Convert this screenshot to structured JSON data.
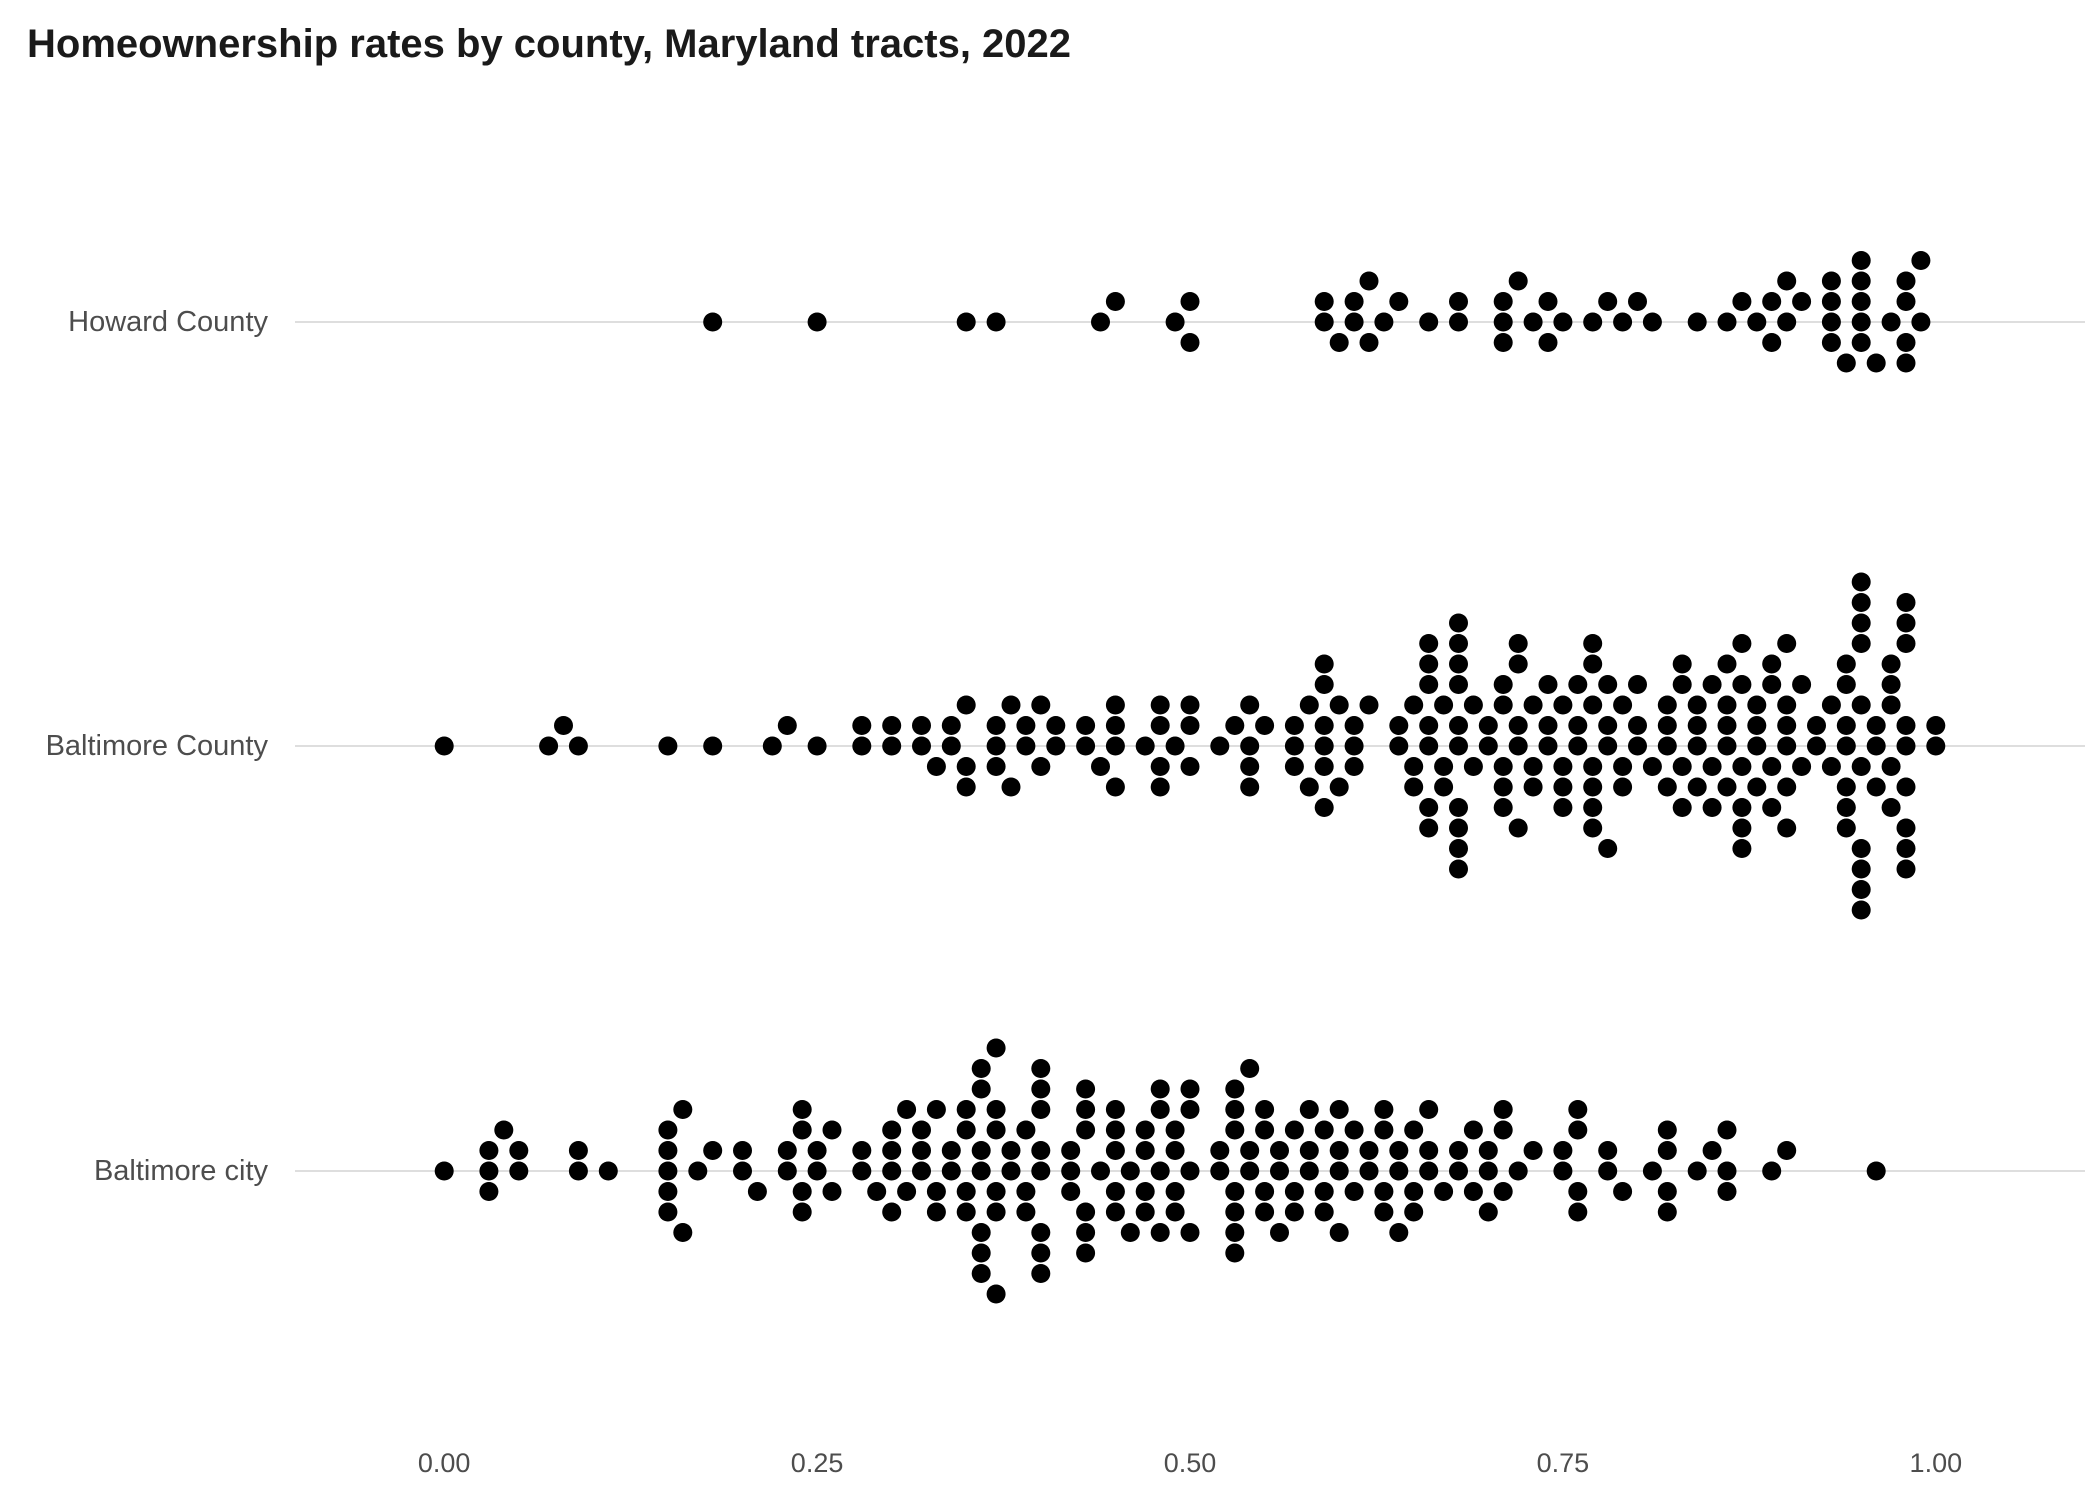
{
  "chart_data": {
    "type": "scatter",
    "subtype": "beeswarm",
    "title": "Homeownership rates by county, Maryland tracts, 2022",
    "xlabel": "",
    "ylabel": "",
    "xlim": [
      -0.1,
      1.1
    ],
    "x_ticks": [
      0,
      0.25,
      0.5,
      0.75,
      1
    ],
    "x_tick_labels": [
      "0.00",
      "0.25",
      "0.50",
      "0.75",
      "1.00"
    ],
    "grid": "horizontal-major",
    "legend": "none",
    "point_color": "#000000",
    "categories": [
      "Howard County",
      "Baltimore County",
      "Baltimore city"
    ],
    "series": [
      {
        "category": "Howard County",
        "values": [
          0.18,
          0.25,
          0.35,
          0.37,
          0.44,
          0.45,
          0.49,
          0.5,
          0.5,
          0.59,
          0.59,
          0.6,
          0.61,
          0.61,
          0.62,
          0.62,
          0.63,
          0.64,
          0.66,
          0.68,
          0.68,
          0.71,
          0.71,
          0.71,
          0.72,
          0.73,
          0.74,
          0.74,
          0.75,
          0.77,
          0.78,
          0.79,
          0.8,
          0.81,
          0.84,
          0.86,
          0.87,
          0.88,
          0.89,
          0.89,
          0.9,
          0.9,
          0.91,
          0.93,
          0.93,
          0.93,
          0.93,
          0.94,
          0.95,
          0.95,
          0.95,
          0.95,
          0.95,
          0.96,
          0.97,
          0.98,
          0.98,
          0.98,
          0.98,
          0.99,
          0.99
        ]
      },
      {
        "category": "Baltimore County",
        "values": [
          0.0,
          0.07,
          0.08,
          0.09,
          0.15,
          0.18,
          0.22,
          0.23,
          0.25,
          0.28,
          0.28,
          0.3,
          0.3,
          0.32,
          0.32,
          0.33,
          0.34,
          0.34,
          0.35,
          0.35,
          0.35,
          0.37,
          0.37,
          0.37,
          0.38,
          0.38,
          0.39,
          0.39,
          0.4,
          0.4,
          0.41,
          0.41,
          0.43,
          0.43,
          0.44,
          0.45,
          0.45,
          0.45,
          0.45,
          0.47,
          0.48,
          0.48,
          0.48,
          0.48,
          0.49,
          0.5,
          0.5,
          0.5,
          0.52,
          0.53,
          0.54,
          0.54,
          0.54,
          0.54,
          0.55,
          0.57,
          0.57,
          0.57,
          0.58,
          0.58,
          0.59,
          0.59,
          0.59,
          0.59,
          0.59,
          0.59,
          0.6,
          0.6,
          0.61,
          0.61,
          0.61,
          0.62,
          0.64,
          0.64,
          0.65,
          0.65,
          0.65,
          0.66,
          0.66,
          0.66,
          0.66,
          0.66,
          0.66,
          0.66,
          0.67,
          0.67,
          0.67,
          0.68,
          0.68,
          0.68,
          0.68,
          0.68,
          0.68,
          0.68,
          0.68,
          0.68,
          0.68,
          0.69,
          0.69,
          0.7,
          0.7,
          0.71,
          0.71,
          0.71,
          0.71,
          0.71,
          0.72,
          0.72,
          0.72,
          0.72,
          0.72,
          0.73,
          0.73,
          0.73,
          0.74,
          0.74,
          0.74,
          0.75,
          0.75,
          0.75,
          0.75,
          0.76,
          0.76,
          0.76,
          0.77,
          0.77,
          0.77,
          0.77,
          0.77,
          0.77,
          0.77,
          0.78,
          0.78,
          0.78,
          0.78,
          0.79,
          0.79,
          0.79,
          0.8,
          0.8,
          0.8,
          0.81,
          0.82,
          0.82,
          0.82,
          0.82,
          0.83,
          0.83,
          0.83,
          0.83,
          0.84,
          0.84,
          0.84,
          0.84,
          0.85,
          0.85,
          0.85,
          0.86,
          0.86,
          0.86,
          0.86,
          0.86,
          0.87,
          0.87,
          0.87,
          0.87,
          0.87,
          0.87,
          0.88,
          0.88,
          0.88,
          0.88,
          0.89,
          0.89,
          0.89,
          0.89,
          0.9,
          0.9,
          0.9,
          0.9,
          0.9,
          0.9,
          0.91,
          0.91,
          0.92,
          0.92,
          0.93,
          0.93,
          0.94,
          0.94,
          0.94,
          0.94,
          0.94,
          0.94,
          0.94,
          0.95,
          0.95,
          0.95,
          0.95,
          0.95,
          0.95,
          0.95,
          0.95,
          0.95,
          0.95,
          0.96,
          0.96,
          0.96,
          0.97,
          0.97,
          0.97,
          0.97,
          0.97,
          0.98,
          0.98,
          0.98,
          0.98,
          0.98,
          0.98,
          0.98,
          0.98,
          0.98,
          1.0,
          1.0
        ]
      },
      {
        "category": "Baltimore city",
        "values": [
          0.0,
          0.03,
          0.03,
          0.03,
          0.04,
          0.05,
          0.05,
          0.09,
          0.09,
          0.11,
          0.15,
          0.15,
          0.15,
          0.15,
          0.15,
          0.16,
          0.16,
          0.17,
          0.18,
          0.2,
          0.2,
          0.21,
          0.23,
          0.23,
          0.24,
          0.24,
          0.24,
          0.24,
          0.25,
          0.25,
          0.26,
          0.26,
          0.28,
          0.28,
          0.29,
          0.3,
          0.3,
          0.3,
          0.3,
          0.31,
          0.31,
          0.32,
          0.32,
          0.32,
          0.33,
          0.33,
          0.33,
          0.34,
          0.34,
          0.35,
          0.35,
          0.35,
          0.35,
          0.36,
          0.36,
          0.36,
          0.36,
          0.36,
          0.36,
          0.36,
          0.37,
          0.37,
          0.37,
          0.37,
          0.37,
          0.37,
          0.38,
          0.38,
          0.39,
          0.39,
          0.39,
          0.4,
          0.4,
          0.4,
          0.4,
          0.4,
          0.4,
          0.4,
          0.4,
          0.42,
          0.42,
          0.42,
          0.43,
          0.43,
          0.43,
          0.43,
          0.43,
          0.43,
          0.44,
          0.45,
          0.45,
          0.45,
          0.45,
          0.45,
          0.46,
          0.46,
          0.47,
          0.47,
          0.47,
          0.47,
          0.48,
          0.48,
          0.48,
          0.48,
          0.49,
          0.49,
          0.49,
          0.49,
          0.5,
          0.5,
          0.5,
          0.5,
          0.52,
          0.52,
          0.53,
          0.53,
          0.53,
          0.53,
          0.53,
          0.53,
          0.53,
          0.54,
          0.54,
          0.54,
          0.55,
          0.55,
          0.55,
          0.55,
          0.56,
          0.56,
          0.56,
          0.57,
          0.57,
          0.57,
          0.58,
          0.58,
          0.58,
          0.59,
          0.59,
          0.59,
          0.6,
          0.6,
          0.6,
          0.6,
          0.61,
          0.61,
          0.62,
          0.62,
          0.63,
          0.63,
          0.63,
          0.63,
          0.64,
          0.64,
          0.64,
          0.65,
          0.65,
          0.65,
          0.66,
          0.66,
          0.66,
          0.67,
          0.68,
          0.68,
          0.69,
          0.69,
          0.7,
          0.7,
          0.7,
          0.71,
          0.71,
          0.71,
          0.72,
          0.73,
          0.75,
          0.75,
          0.76,
          0.76,
          0.76,
          0.76,
          0.78,
          0.78,
          0.79,
          0.81,
          0.82,
          0.82,
          0.82,
          0.82,
          0.84,
          0.85,
          0.86,
          0.86,
          0.86,
          0.89,
          0.9,
          0.96
        ]
      }
    ]
  }
}
